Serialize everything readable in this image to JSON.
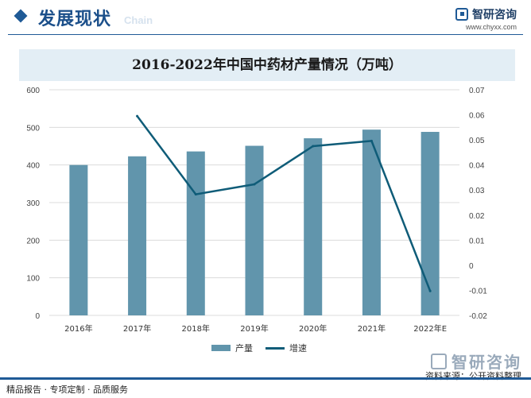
{
  "header": {
    "section_title": "发展现状",
    "section_subtitle": "Chain",
    "brand_name": "智研咨询",
    "brand_url": "www.chyxx.com"
  },
  "footer": {
    "tagline": "精品报告 · 专项定制 · 品质服务",
    "source": "资料来源：公开资料整理",
    "logo_text": "智研咨询"
  },
  "colors": {
    "bar": "#6195ac",
    "line": "#0f5c78",
    "header_blue": "#1f5a96"
  },
  "chart_data": {
    "type": "bar",
    "title": "2016-2022年中国中药材产量情况（万吨）",
    "categories": [
      "2016年",
      "2017年",
      "2018年",
      "2019年",
      "2020年",
      "2021年",
      "2022年E"
    ],
    "series": [
      {
        "name": "产量",
        "type": "bar",
        "axis": "left",
        "values": [
          400,
          423,
          436,
          451,
          471,
          494,
          488
        ]
      },
      {
        "name": "增速",
        "type": "line",
        "axis": "right",
        "values": [
          null,
          0.0595,
          0.0283,
          0.0323,
          0.0475,
          0.0496,
          -0.0103
        ]
      }
    ],
    "y_left": {
      "min": 0,
      "max": 600,
      "ticks": [
        0,
        100,
        200,
        300,
        400,
        500,
        600
      ]
    },
    "y_right": {
      "min": -0.02,
      "max": 0.07,
      "ticks": [
        -0.02,
        -0.01,
        0,
        0.01,
        0.02,
        0.03,
        0.04,
        0.05,
        0.06,
        0.07
      ]
    },
    "grid": true,
    "legend": "bottom"
  }
}
